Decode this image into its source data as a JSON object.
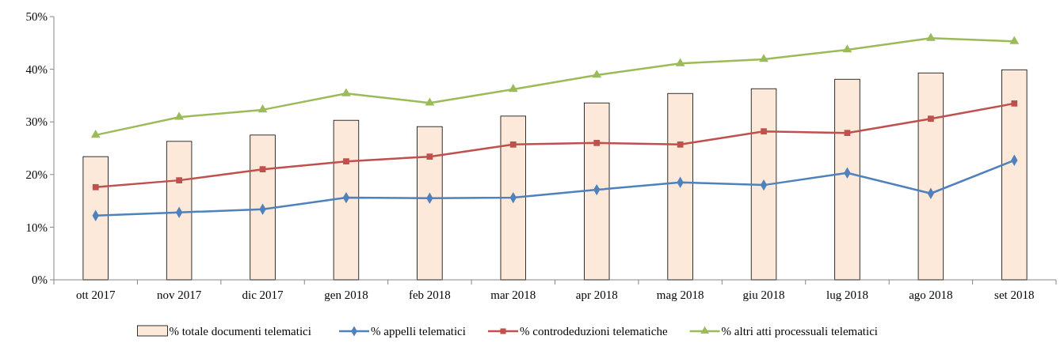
{
  "chart_data": {
    "type": "bar",
    "categories": [
      "ott 2017",
      "nov 2017",
      "dic 2017",
      "gen 2018",
      "feb 2018",
      "mar 2018",
      "apr 2018",
      "mag 2018",
      "giu 2018",
      "lug 2018",
      "ago 2018",
      "set 2018"
    ],
    "ylim": [
      0,
      50
    ],
    "yticks": [
      {
        "value": 0,
        "label": "0%"
      },
      {
        "value": 10,
        "label": "10%"
      },
      {
        "value": 20,
        "label": "20%"
      },
      {
        "value": 30,
        "label": "30%"
      },
      {
        "value": 40,
        "label": "40%"
      },
      {
        "value": 50,
        "label": "50%"
      }
    ],
    "grid": false,
    "legend": "bottom",
    "series": [
      {
        "name": "% totale documenti telematici",
        "color": "#fde9d9",
        "values": [
          23.4,
          26.3,
          27.5,
          30.3,
          29.1,
          31.1,
          33.6,
          35.4,
          36.3,
          38.1,
          39.3,
          39.9
        ]
      },
      {
        "name": "% appelli telematici",
        "type": "line",
        "marker": "diamond",
        "color": "#4f81bd",
        "values": [
          12.2,
          12.8,
          13.4,
          15.6,
          15.5,
          15.6,
          17.1,
          18.5,
          18.0,
          20.3,
          16.4,
          22.7
        ]
      },
      {
        "name": "% controdeduzioni telematiche",
        "type": "line",
        "marker": "square",
        "color": "#c0504d",
        "values": [
          17.6,
          18.9,
          21.0,
          22.5,
          23.4,
          25.7,
          26.0,
          25.7,
          28.2,
          27.9,
          30.6,
          33.5
        ]
      },
      {
        "name": "% altri atti processuali telematici",
        "type": "line",
        "marker": "triangle",
        "color": "#9bbb59",
        "values": [
          27.5,
          30.9,
          32.3,
          35.4,
          33.6,
          36.2,
          38.9,
          41.1,
          41.9,
          43.7,
          45.9,
          45.3
        ]
      }
    ]
  }
}
